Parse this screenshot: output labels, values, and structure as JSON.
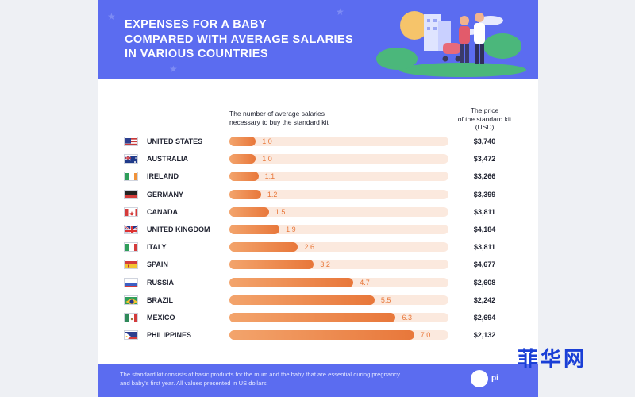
{
  "header": {
    "title_lines": [
      "EXPENSES FOR A BABY",
      "COMPARED WITH AVERAGE SALARIES",
      "IN VARIOUS COUNTRIES"
    ]
  },
  "columns": {
    "bars_header_lines": [
      "The number of average salaries",
      "necessary to buy the standard kit"
    ],
    "price_header_lines": [
      "The price",
      "of the standard kit",
      "(USD)"
    ]
  },
  "chart_data": {
    "type": "bar",
    "orientation": "horizontal",
    "categories": [
      "UNITED STATES",
      "AUSTRALIA",
      "IRELAND",
      "GERMANY",
      "CANADA",
      "UNITED KINGDOM",
      "ITALY",
      "SPAIN",
      "RUSSIA",
      "BRAZIL",
      "MEXICO",
      "PHILIPPINES"
    ],
    "values": [
      1.0,
      1.0,
      1.1,
      1.2,
      1.5,
      1.9,
      2.6,
      3.2,
      4.7,
      5.5,
      6.3,
      7.0
    ],
    "value_labels": [
      "1.0",
      "1.0",
      "1.1",
      "1.2",
      "1.5",
      "1.9",
      "2.6",
      "3.2",
      "4.7",
      "5.5",
      "6.3",
      "7.0"
    ],
    "prices": [
      "$3,740",
      "$3,472",
      "$3,266",
      "$3,399",
      "$3,811",
      "$4,184",
      "$3,811",
      "$4,677",
      "$2,608",
      "$2,242",
      "$2,694",
      "$2,132"
    ],
    "xlim": [
      0,
      8.3
    ],
    "grid": false,
    "colors": {
      "bar": "#e8773a",
      "track": "#fbe9de"
    }
  },
  "flags": [
    "us",
    "au",
    "ie",
    "de",
    "ca",
    "gb",
    "it",
    "es",
    "ru",
    "br",
    "mx",
    "ph"
  ],
  "footer": {
    "note_lines": [
      "The standard kit consists of basic products for the mum and the baby that are essential during pregnancy",
      "and baby's first year. All values presented in US dollars."
    ],
    "brand": "pi"
  },
  "watermark": {
    "text": "菲华网"
  },
  "colors": {
    "header_bg": "#5b6cf0",
    "accent": "#e8773a",
    "watermark": "#1a3fd6"
  }
}
